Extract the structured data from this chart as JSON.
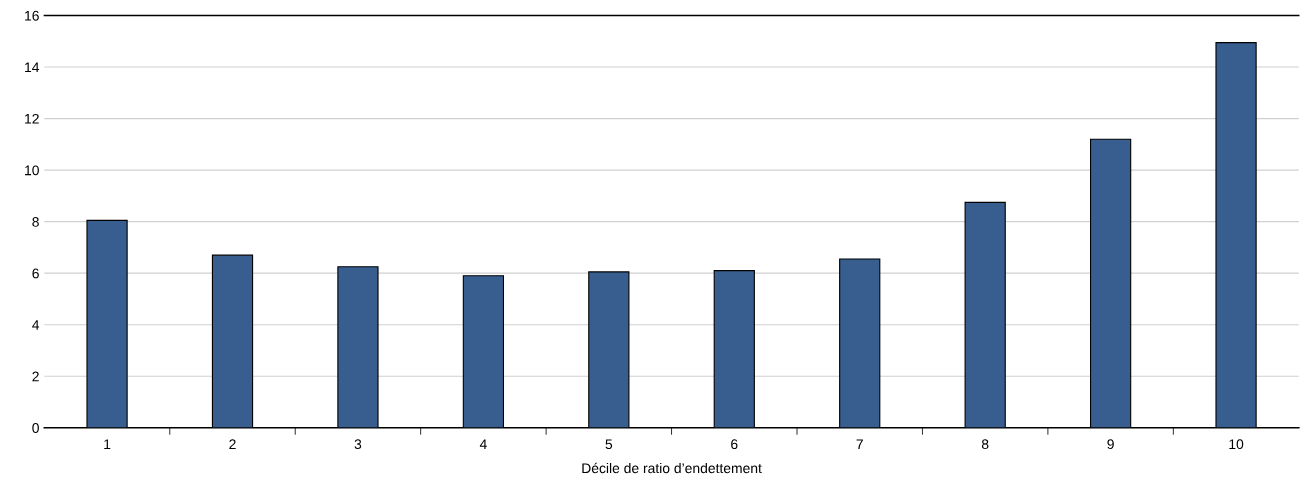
{
  "chart_data": {
    "type": "bar",
    "xlabel": "Décile de ratio d’endettement",
    "categories": [
      "1",
      "2",
      "3",
      "4",
      "5",
      "6",
      "7",
      "8",
      "9",
      "10"
    ],
    "values": [
      8.05,
      6.7,
      6.25,
      5.9,
      6.05,
      6.1,
      6.55,
      8.75,
      11.2,
      14.95
    ],
    "color": "#375e8f",
    "ylim": [
      0,
      16
    ],
    "yticks": [
      0,
      2,
      4,
      6,
      8,
      10,
      12,
      14,
      16
    ],
    "grid": "y",
    "legend": false
  }
}
